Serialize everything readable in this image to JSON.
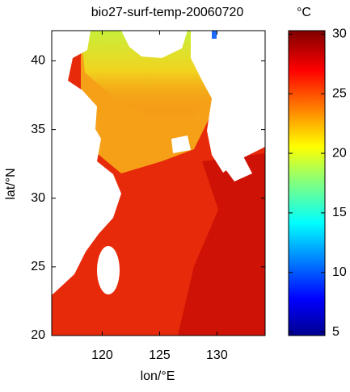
{
  "map": {
    "title": "bio27-surf-temp-20060720",
    "xlabel": "lon/°E",
    "ylabel": "lat/°N",
    "xlim": [
      115.6,
      134.2
    ],
    "ylim": [
      20,
      42.2
    ],
    "xticks": [
      120,
      125,
      130
    ],
    "yticks": [
      20,
      25,
      30,
      35,
      40
    ]
  },
  "colorbar": {
    "label": "°C",
    "lim": [
      4.7,
      30.3
    ],
    "ticks": [
      5,
      10,
      15,
      20,
      25,
      30
    ]
  }
}
